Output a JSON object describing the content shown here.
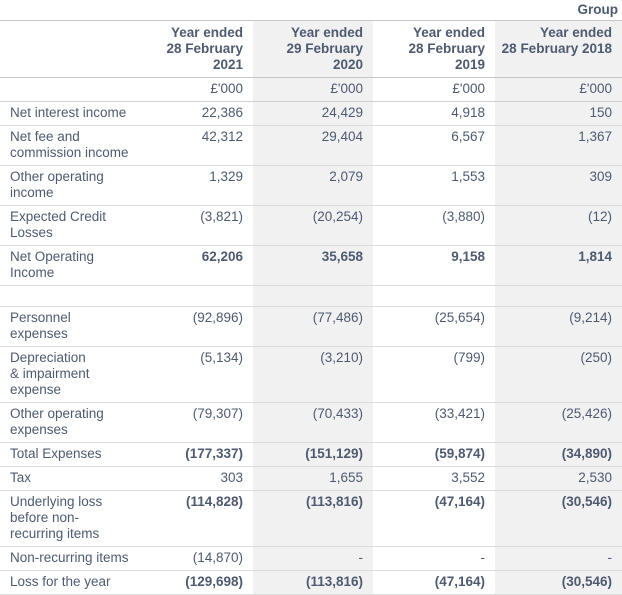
{
  "table": {
    "group_label": "Group",
    "unit_label": "£'000",
    "columns": [
      {
        "label": "Year ended\n28 February 2021",
        "shaded": false
      },
      {
        "label": "Year ended\n29 February 2020",
        "shaded": true
      },
      {
        "label": "Year ended\n28 February 2019",
        "shaded": false
      },
      {
        "label": "Year ended\n28 February 2018",
        "shaded": true
      }
    ],
    "rows": [
      {
        "label": "Net interest income",
        "values": [
          "22,386",
          "24,429",
          "4,918",
          "150"
        ],
        "bold": false,
        "spacer": false
      },
      {
        "label": "Net fee and\ncommission income",
        "values": [
          "42,312",
          "29,404",
          "6,567",
          "1,367"
        ],
        "bold": false,
        "spacer": false
      },
      {
        "label": "Other operating\nincome",
        "values": [
          "1,329",
          "2,079",
          "1,553",
          "309"
        ],
        "bold": false,
        "spacer": false
      },
      {
        "label": "Expected Credit\nLosses",
        "values": [
          "(3,821)",
          "(20,254)",
          "(3,880)",
          "(12)"
        ],
        "bold": false,
        "spacer": false
      },
      {
        "label": "Net Operating\nIncome",
        "values": [
          "62,206",
          "35,658",
          "9,158",
          "1,814"
        ],
        "bold": true,
        "spacer": false
      },
      {
        "label": "",
        "values": [
          "",
          "",
          "",
          ""
        ],
        "bold": false,
        "spacer": true
      },
      {
        "label": "Personnel\nexpenses",
        "values": [
          "(92,896)",
          "(77,486)",
          "(25,654)",
          "(9,214)"
        ],
        "bold": false,
        "spacer": false
      },
      {
        "label": "Depreciation\n& impairment\nexpense",
        "values": [
          "(5,134)",
          "(3,210)",
          "(799)",
          "(250)"
        ],
        "bold": false,
        "spacer": false
      },
      {
        "label": "Other operating\nexpenses",
        "values": [
          "(79,307)",
          "(70,433)",
          "(33,421)",
          "(25,426)"
        ],
        "bold": false,
        "spacer": false
      },
      {
        "label": "Total Expenses",
        "values": [
          "(177,337)",
          "(151,129)",
          "(59,874)",
          "(34,890)"
        ],
        "bold": true,
        "spacer": false
      },
      {
        "label": "Tax",
        "values": [
          "303",
          "1,655",
          "3,552",
          "2,530"
        ],
        "bold": false,
        "spacer": false
      },
      {
        "label": "Underlying loss\nbefore non-\nrecurring items",
        "values": [
          "(114,828)",
          "(113,816)",
          "(47,164)",
          "(30,546)"
        ],
        "bold": true,
        "spacer": false
      },
      {
        "label": "Non-recurring items",
        "values": [
          "(14,870)",
          "-",
          "-",
          "-"
        ],
        "bold": false,
        "spacer": false
      },
      {
        "label": "Loss for the year",
        "values": [
          "(129,698)",
          "(113,816)",
          "(47,164)",
          "(30,546)"
        ],
        "bold": true,
        "spacer": false
      }
    ],
    "colors": {
      "text": "#4e5a70",
      "shaded_column_bg": "#f1f1f2",
      "strong_border": "#c3c7cd",
      "row_border": "#dadce0"
    }
  }
}
